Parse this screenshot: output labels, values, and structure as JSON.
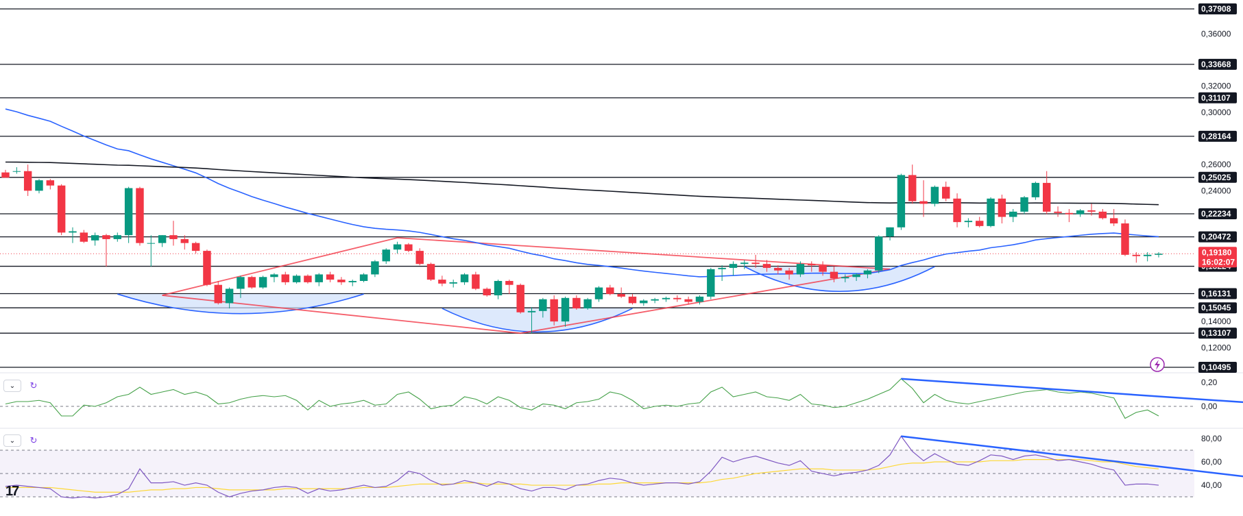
{
  "chart_data": {
    "type": "candlestick",
    "price_axis": {
      "range": [
        0.1,
        0.385
      ],
      "ticks": [
        "0,36000",
        "0,32000",
        "0,30000",
        "0,26000",
        "0,24000",
        "0,14000",
        "0,12000"
      ]
    },
    "levels": [
      {
        "value": 0.37908,
        "label": "0,37908"
      },
      {
        "value": 0.33668,
        "label": "0,33668"
      },
      {
        "value": 0.31107,
        "label": "0,31107"
      },
      {
        "value": 0.28164,
        "label": "0,28164"
      },
      {
        "value": 0.25025,
        "label": "0,25025"
      },
      {
        "value": 0.22234,
        "label": "0,22234"
      },
      {
        "value": 0.20472,
        "label": "0,20472"
      },
      {
        "value": 0.18224,
        "label": "0,18224"
      },
      {
        "value": 0.16131,
        "label": "0,16131"
      },
      {
        "value": 0.15045,
        "label": "0,15045"
      },
      {
        "value": 0.13107,
        "label": "0,13107"
      },
      {
        "value": 0.10495,
        "label": "0,10495"
      }
    ],
    "current_price": {
      "value": 0.1918,
      "label": "0,19180",
      "countdown": "16:02:07"
    },
    "candles": [
      [
        0.254,
        0.256,
        0.25,
        0.25
      ],
      [
        0.255,
        0.258,
        0.253,
        0.255
      ],
      [
        0.255,
        0.26,
        0.236,
        0.24
      ],
      [
        0.24,
        0.249,
        0.238,
        0.248
      ],
      [
        0.248,
        0.249,
        0.241,
        0.244
      ],
      [
        0.244,
        0.245,
        0.206,
        0.208
      ],
      [
        0.208,
        0.212,
        0.2,
        0.209
      ],
      [
        0.208,
        0.21,
        0.2,
        0.201
      ],
      [
        0.202,
        0.208,
        0.198,
        0.206
      ],
      [
        0.206,
        0.207,
        0.182,
        0.203
      ],
      [
        0.203,
        0.208,
        0.201,
        0.206
      ],
      [
        0.206,
        0.243,
        0.2,
        0.242
      ],
      [
        0.242,
        0.243,
        0.198,
        0.2
      ],
      [
        0.2,
        0.206,
        0.182,
        0.2
      ],
      [
        0.2,
        0.206,
        0.197,
        0.206
      ],
      [
        0.206,
        0.217,
        0.198,
        0.203
      ],
      [
        0.203,
        0.206,
        0.195,
        0.2
      ],
      [
        0.2,
        0.201,
        0.192,
        0.194
      ],
      [
        0.194,
        0.195,
        0.167,
        0.168
      ],
      [
        0.168,
        0.171,
        0.153,
        0.154
      ],
      [
        0.154,
        0.166,
        0.15,
        0.165
      ],
      [
        0.165,
        0.175,
        0.158,
        0.174
      ],
      [
        0.174,
        0.175,
        0.165,
        0.166
      ],
      [
        0.166,
        0.175,
        0.165,
        0.174
      ],
      [
        0.174,
        0.177,
        0.17,
        0.176
      ],
      [
        0.176,
        0.178,
        0.168,
        0.17
      ],
      [
        0.17,
        0.176,
        0.169,
        0.175
      ],
      [
        0.175,
        0.176,
        0.169,
        0.17
      ],
      [
        0.17,
        0.177,
        0.167,
        0.176
      ],
      [
        0.176,
        0.178,
        0.17,
        0.172
      ],
      [
        0.172,
        0.174,
        0.168,
        0.17
      ],
      [
        0.17,
        0.172,
        0.167,
        0.171
      ],
      [
        0.171,
        0.177,
        0.17,
        0.176
      ],
      [
        0.176,
        0.187,
        0.174,
        0.186
      ],
      [
        0.186,
        0.196,
        0.184,
        0.195
      ],
      [
        0.195,
        0.201,
        0.192,
        0.199
      ],
      [
        0.199,
        0.2,
        0.193,
        0.194
      ],
      [
        0.194,
        0.196,
        0.183,
        0.184
      ],
      [
        0.184,
        0.185,
        0.171,
        0.172
      ],
      [
        0.172,
        0.175,
        0.167,
        0.169
      ],
      [
        0.169,
        0.172,
        0.166,
        0.17
      ],
      [
        0.17,
        0.177,
        0.168,
        0.176
      ],
      [
        0.176,
        0.178,
        0.164,
        0.165
      ],
      [
        0.165,
        0.166,
        0.159,
        0.16
      ],
      [
        0.16,
        0.172,
        0.157,
        0.171
      ],
      [
        0.171,
        0.172,
        0.161,
        0.168
      ],
      [
        0.168,
        0.169,
        0.146,
        0.147
      ],
      [
        0.147,
        0.151,
        0.131,
        0.148
      ],
      [
        0.148,
        0.158,
        0.143,
        0.157
      ],
      [
        0.157,
        0.16,
        0.137,
        0.14
      ],
      [
        0.14,
        0.159,
        0.136,
        0.158
      ],
      [
        0.158,
        0.16,
        0.149,
        0.15
      ],
      [
        0.15,
        0.158,
        0.149,
        0.157
      ],
      [
        0.157,
        0.167,
        0.155,
        0.166
      ],
      [
        0.166,
        0.168,
        0.16,
        0.161
      ],
      [
        0.161,
        0.166,
        0.158,
        0.159
      ],
      [
        0.159,
        0.161,
        0.153,
        0.154
      ],
      [
        0.154,
        0.157,
        0.152,
        0.156
      ],
      [
        0.156,
        0.158,
        0.154,
        0.157
      ],
      [
        0.157,
        0.159,
        0.155,
        0.158
      ],
      [
        0.158,
        0.16,
        0.155,
        0.157
      ],
      [
        0.157,
        0.159,
        0.153,
        0.155
      ],
      [
        0.155,
        0.16,
        0.153,
        0.159
      ],
      [
        0.159,
        0.181,
        0.157,
        0.18
      ],
      [
        0.18,
        0.183,
        0.171,
        0.181
      ],
      [
        0.181,
        0.186,
        0.175,
        0.184
      ],
      [
        0.184,
        0.187,
        0.18,
        0.185
      ],
      [
        0.185,
        0.191,
        0.181,
        0.184
      ],
      [
        0.184,
        0.187,
        0.178,
        0.181
      ],
      [
        0.181,
        0.183,
        0.176,
        0.179
      ],
      [
        0.179,
        0.181,
        0.172,
        0.176
      ],
      [
        0.176,
        0.186,
        0.174,
        0.184
      ],
      [
        0.184,
        0.186,
        0.178,
        0.183
      ],
      [
        0.183,
        0.186,
        0.175,
        0.178
      ],
      [
        0.178,
        0.182,
        0.17,
        0.173
      ],
      [
        0.173,
        0.176,
        0.17,
        0.174
      ],
      [
        0.174,
        0.177,
        0.171,
        0.176
      ],
      [
        0.176,
        0.18,
        0.173,
        0.179
      ],
      [
        0.179,
        0.206,
        0.177,
        0.205
      ],
      [
        0.205,
        0.212,
        0.202,
        0.212
      ],
      [
        0.212,
        0.253,
        0.21,
        0.252
      ],
      [
        0.252,
        0.26,
        0.23,
        0.232
      ],
      [
        0.232,
        0.248,
        0.22,
        0.23
      ],
      [
        0.23,
        0.244,
        0.228,
        0.243
      ],
      [
        0.243,
        0.247,
        0.232,
        0.234
      ],
      [
        0.234,
        0.238,
        0.212,
        0.216
      ],
      [
        0.216,
        0.219,
        0.212,
        0.217
      ],
      [
        0.217,
        0.22,
        0.212,
        0.213
      ],
      [
        0.213,
        0.235,
        0.212,
        0.234
      ],
      [
        0.234,
        0.237,
        0.215,
        0.22
      ],
      [
        0.22,
        0.226,
        0.216,
        0.224
      ],
      [
        0.224,
        0.236,
        0.222,
        0.235
      ],
      [
        0.235,
        0.247,
        0.233,
        0.246
      ],
      [
        0.246,
        0.255,
        0.222,
        0.224
      ],
      [
        0.224,
        0.228,
        0.22,
        0.223
      ],
      [
        0.223,
        0.226,
        0.216,
        0.222
      ],
      [
        0.222,
        0.226,
        0.22,
        0.225
      ],
      [
        0.225,
        0.23,
        0.221,
        0.224
      ],
      [
        0.224,
        0.226,
        0.218,
        0.219
      ],
      [
        0.219,
        0.226,
        0.213,
        0.215
      ],
      [
        0.215,
        0.218,
        0.19,
        0.191
      ],
      [
        0.191,
        0.193,
        0.185,
        0.19
      ],
      [
        0.19,
        0.193,
        0.186,
        0.191
      ],
      [
        0.191,
        0.193,
        0.189,
        0.1918
      ]
    ],
    "indicator1": {
      "ticks": [
        "0,20",
        "0,00"
      ],
      "values": [
        0.02,
        0.04,
        0.04,
        0.05,
        0.03,
        -0.08,
        -0.08,
        0.01,
        0.0,
        0.03,
        0.08,
        0.1,
        0.16,
        0.1,
        0.12,
        0.14,
        0.1,
        0.12,
        0.09,
        0.02,
        0.03,
        0.06,
        0.08,
        0.09,
        0.08,
        0.09,
        0.05,
        -0.03,
        0.05,
        0.0,
        0.02,
        0.03,
        0.05,
        0.01,
        0.02,
        0.1,
        0.12,
        0.06,
        -0.02,
        0.0,
        0.01,
        0.08,
        0.06,
        0.02,
        0.08,
        0.05,
        -0.01,
        -0.03,
        0.02,
        0.01,
        -0.02,
        0.03,
        0.04,
        0.06,
        0.12,
        0.1,
        0.05,
        -0.02,
        0.0,
        0.01,
        0.0,
        0.02,
        0.03,
        0.12,
        0.16,
        0.08,
        0.1,
        0.12,
        0.08,
        0.07,
        0.05,
        0.1,
        0.02,
        0.01,
        -0.01,
        0.0,
        0.03,
        0.06,
        0.1,
        0.14,
        0.23,
        0.15,
        0.03,
        0.1,
        0.05,
        0.03,
        0.02,
        0.04,
        0.06,
        0.08,
        0.1,
        0.12,
        0.13,
        0.14,
        0.12,
        0.11,
        0.12,
        0.11,
        0.09,
        0.07,
        -0.1,
        -0.05,
        -0.03,
        -0.08
      ],
      "trendline": [
        [
          80,
          0.23
        ],
        [
          111,
          0.02
        ]
      ]
    },
    "indicator2": {
      "ticks": [
        "80,00",
        "60,00",
        "40,00"
      ],
      "bands": [
        70,
        50,
        30
      ],
      "values": [
        39,
        40,
        39,
        38,
        37,
        30,
        29,
        30,
        29,
        30,
        32,
        37,
        54,
        42,
        42,
        43,
        40,
        42,
        40,
        34,
        30,
        33,
        35,
        36,
        38,
        39,
        38,
        33,
        37,
        35,
        36,
        38,
        40,
        38,
        39,
        44,
        52,
        50,
        44,
        40,
        41,
        44,
        42,
        39,
        43,
        41,
        37,
        35,
        38,
        38,
        36,
        40,
        41,
        44,
        46,
        45,
        42,
        40,
        41,
        42,
        42,
        41,
        43,
        52,
        64,
        60,
        63,
        65,
        62,
        59,
        57,
        61,
        52,
        50,
        48,
        50,
        51,
        53,
        57,
        66,
        82,
        69,
        61,
        67,
        62,
        58,
        57,
        61,
        66,
        65,
        62,
        65,
        66,
        64,
        61,
        62,
        60,
        58,
        55,
        53,
        40,
        41,
        41,
        40
      ],
      "signal": [
        38,
        38,
        38,
        38,
        38,
        37,
        36,
        35,
        34,
        34,
        34,
        34,
        35,
        36,
        36,
        37,
        37,
        38,
        38,
        37,
        36,
        36,
        36,
        36,
        36,
        37,
        37,
        37,
        37,
        37,
        37,
        37,
        38,
        38,
        38,
        39,
        40,
        41,
        41,
        41,
        41,
        42,
        42,
        41,
        41,
        41,
        41,
        40,
        40,
        40,
        40,
        40,
        40,
        41,
        41,
        42,
        42,
        42,
        42,
        42,
        42,
        42,
        42,
        43,
        45,
        46,
        48,
        50,
        51,
        52,
        53,
        54,
        54,
        54,
        53,
        53,
        53,
        53,
        54,
        56,
        58,
        59,
        59,
        60,
        60,
        60,
        60,
        60,
        61,
        61,
        61,
        62,
        62,
        62,
        62,
        62,
        62,
        61,
        60,
        60,
        58,
        56,
        55,
        54
      ],
      "trendline": [
        [
          80,
          82
        ],
        [
          111,
          45
        ]
      ]
    }
  }
}
